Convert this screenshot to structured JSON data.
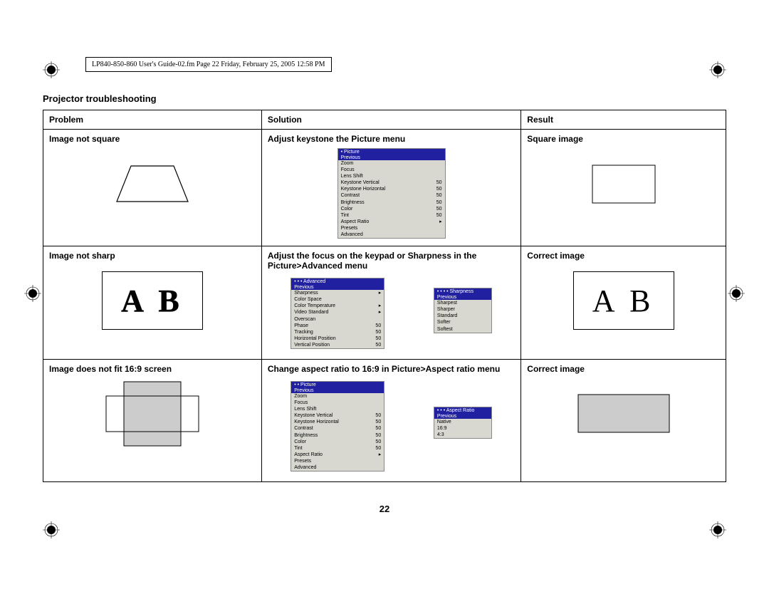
{
  "header": "LP840-850-860 User's Guide-02.fm  Page 22  Friday, February 25, 2005  12:58 PM",
  "title": "Projector troubleshooting",
  "page_number": "22",
  "columns": {
    "problem": "Problem",
    "solution": "Solution",
    "result": "Result"
  },
  "rows": [
    {
      "problem": "Image not square",
      "solution": "Adjust keystone the Picture menu",
      "result": "Square image"
    },
    {
      "problem": "Image not sharp",
      "solution": "Adjust the focus on the keypad or Sharpness in the Picture>Advanced menu",
      "result": "Correct image"
    },
    {
      "problem": "Image does not fit 16:9 screen",
      "solution": "Change aspect ratio to 16:9 in Picture>Aspect ratio menu",
      "result": "Correct image"
    }
  ],
  "menus": {
    "picture": {
      "title": "•  Picture",
      "highlight": "Previous",
      "items": [
        {
          "l": "Zoom",
          "r": ""
        },
        {
          "l": "Focus",
          "r": ""
        },
        {
          "l": "Lens Shift",
          "r": ""
        },
        {
          "l": "Keystone Vertical",
          "r": "50"
        },
        {
          "l": "Keystone Horizontal",
          "r": "50"
        },
        {
          "l": "Contrast",
          "r": "50"
        },
        {
          "l": "Brightness",
          "r": "50"
        },
        {
          "l": "Color",
          "r": "50"
        },
        {
          "l": "Tint",
          "r": "50"
        },
        {
          "l": "Aspect Ratio",
          "r": "▸"
        },
        {
          "l": "Presets",
          "r": ""
        },
        {
          "l": "Advanced",
          "r": ""
        }
      ]
    },
    "advanced": {
      "title": "• • •  Advanced",
      "highlight": "Previous",
      "items": [
        {
          "l": "Sharpness",
          "r": "▸"
        },
        {
          "l": "Color Space",
          "r": ""
        },
        {
          "l": "Color Temperature",
          "r": "▸"
        },
        {
          "l": "Video Standard",
          "r": "▸"
        },
        {
          "l": "Overscan",
          "r": ""
        },
        {
          "l": "Phase",
          "r": "50"
        },
        {
          "l": "Tracking",
          "r": "50"
        },
        {
          "l": "Horizontal Position",
          "r": "50"
        },
        {
          "l": "Vertical Position",
          "r": "50"
        }
      ]
    },
    "sharpness": {
      "title": "• • • •  Sharpness",
      "highlight": "Previous",
      "items": [
        {
          "l": "Sharpest",
          "r": ""
        },
        {
          "l": "Sharper",
          "r": ""
        },
        {
          "l": "Standard",
          "r": ""
        },
        {
          "l": "Softer",
          "r": ""
        },
        {
          "l": "Softest",
          "r": ""
        }
      ]
    },
    "picture2": {
      "title": "• •  Picture",
      "highlight": "Previous",
      "items": [
        {
          "l": "Zoom",
          "r": ""
        },
        {
          "l": "Focus",
          "r": ""
        },
        {
          "l": "Lens Shift",
          "r": ""
        },
        {
          "l": "Keystone Vertical",
          "r": "50"
        },
        {
          "l": "Keystone Horizontal",
          "r": "50"
        },
        {
          "l": "Contrast",
          "r": "50"
        },
        {
          "l": "Brightness",
          "r": "50"
        },
        {
          "l": "Color",
          "r": "50"
        },
        {
          "l": "Tint",
          "r": "50"
        },
        {
          "l": "Aspect Ratio",
          "r": "▸"
        },
        {
          "l": "Presets",
          "r": ""
        },
        {
          "l": "Advanced",
          "r": ""
        }
      ]
    },
    "aspect": {
      "title": "• • •  Aspect Ratio",
      "highlight": "Previous",
      "items": [
        {
          "l": "Native",
          "r": ""
        },
        {
          "l": "16:9",
          "r": ""
        },
        {
          "l": "4:3",
          "r": ""
        }
      ]
    }
  },
  "ab_text": "A B",
  "colors": {
    "menu_bg": "#d8d8d0",
    "menu_bar": "#2020a0",
    "border": "#000000"
  }
}
